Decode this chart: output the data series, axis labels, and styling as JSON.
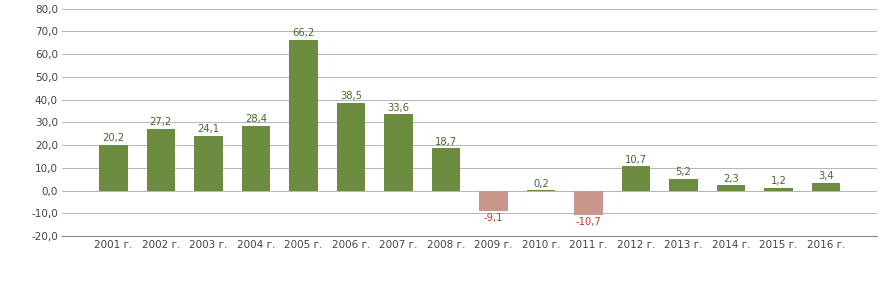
{
  "categories": [
    "2001 г.",
    "2002 г.",
    "2003 г.",
    "2004 г.",
    "2005 г.",
    "2006 г.",
    "2007 г.",
    "2008 г.",
    "2009 г.",
    "2010 г.",
    "2011 г.",
    "2012 г.",
    "2013 г.",
    "2014 г.",
    "2015 г.",
    "2016 г."
  ],
  "values": [
    20.2,
    27.2,
    24.1,
    28.4,
    66.2,
    38.5,
    33.6,
    18.7,
    -9.1,
    0.2,
    -10.7,
    10.7,
    5.2,
    2.3,
    1.2,
    3.4
  ],
  "bar_color_positive": "#6b8c3e",
  "bar_color_negative": "#c8968a",
  "label_color_positive": "#4a6828",
  "label_color_negative": "#c0392b",
  "background_color": "#ffffff",
  "grid_color": "#aaaaaa",
  "axis_color": "#888888",
  "ylim": [
    -20,
    80
  ],
  "yticks": [
    -20,
    -10,
    0,
    10,
    20,
    30,
    40,
    50,
    60,
    70,
    80
  ],
  "label_fontsize": 7.2,
  "tick_fontsize": 7.5,
  "bar_width": 0.6
}
